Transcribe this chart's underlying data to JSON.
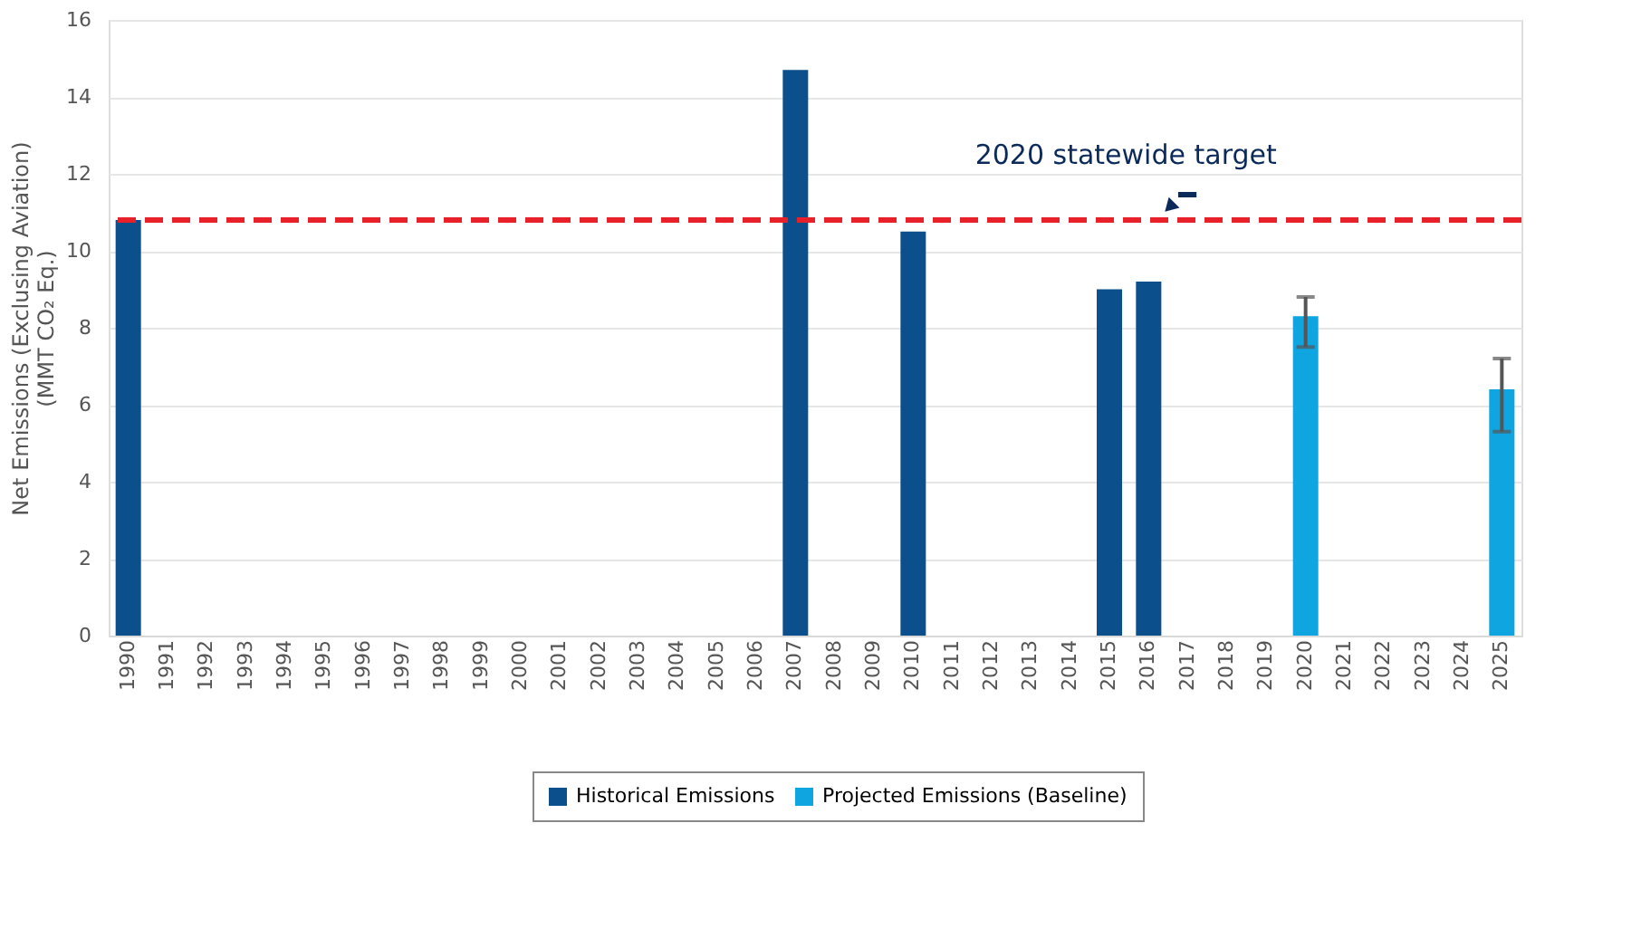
{
  "chart_data": {
    "type": "bar",
    "ylabel": "Net Emissions (Exclusing Aviation)\n(MMT CO₂ Eq.)",
    "categories": [
      "1990",
      "1991",
      "1992",
      "1993",
      "1994",
      "1995",
      "1996",
      "1997",
      "1998",
      "1999",
      "2000",
      "2001",
      "2002",
      "2003",
      "2004",
      "2005",
      "2006",
      "2007",
      "2008",
      "2009",
      "2010",
      "2011",
      "2012",
      "2013",
      "2014",
      "2015",
      "2016",
      "2017",
      "2018",
      "2019",
      "2020",
      "2021",
      "2022",
      "2023",
      "2024",
      "2025"
    ],
    "series": [
      {
        "name": "Historical Emissions",
        "color": "#0b4f8c",
        "values": [
          10.8,
          null,
          null,
          null,
          null,
          null,
          null,
          null,
          null,
          null,
          null,
          null,
          null,
          null,
          null,
          null,
          null,
          14.7,
          null,
          null,
          10.5,
          null,
          null,
          null,
          null,
          9.0,
          9.2,
          null,
          null,
          null,
          null,
          null,
          null,
          null,
          null,
          null
        ]
      },
      {
        "name": "Projected Emissions (Baseline)",
        "color": "#0ea5e0",
        "values": [
          null,
          null,
          null,
          null,
          null,
          null,
          null,
          null,
          null,
          null,
          null,
          null,
          null,
          null,
          null,
          null,
          null,
          null,
          null,
          null,
          null,
          null,
          null,
          null,
          null,
          null,
          null,
          null,
          null,
          null,
          8.3,
          null,
          null,
          null,
          null,
          6.4
        ],
        "errors": [
          null,
          null,
          null,
          null,
          null,
          null,
          null,
          null,
          null,
          null,
          null,
          null,
          null,
          null,
          null,
          null,
          null,
          null,
          null,
          null,
          null,
          null,
          null,
          null,
          null,
          null,
          null,
          null,
          null,
          null,
          [
            7.5,
            8.8
          ],
          null,
          null,
          null,
          null,
          [
            5.3,
            7.2
          ]
        ]
      }
    ],
    "ylim": [
      0,
      16
    ],
    "yticks": [
      0,
      2,
      4,
      6,
      8,
      10,
      12,
      14,
      16
    ],
    "grid": "y",
    "legend": "bottom",
    "ref_lines": [
      {
        "axis": "y",
        "value": 10.8,
        "label": "2020 statewide target",
        "color": "#e8202a",
        "line_style": "dashed"
      }
    ]
  }
}
